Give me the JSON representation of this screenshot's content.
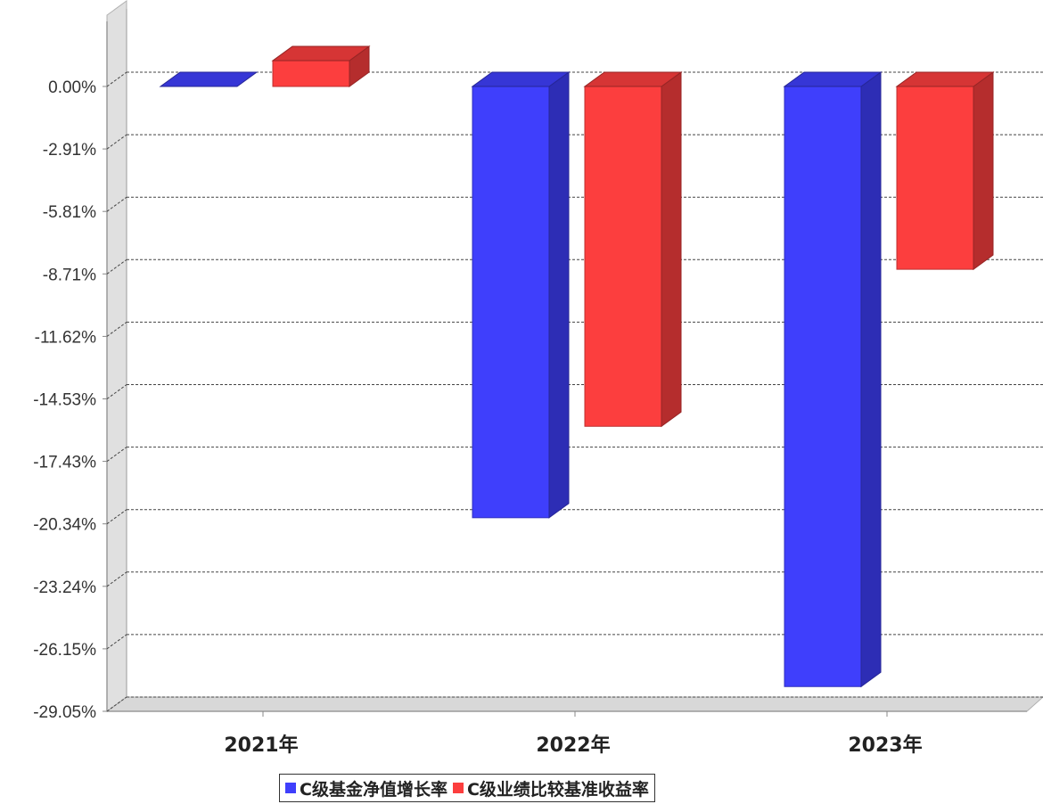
{
  "chart_data": {
    "type": "bar",
    "categories": [
      "2021年",
      "2022年",
      "2023年"
    ],
    "y_tick_labels": [
      "0.00%",
      "-2.91%",
      "-5.81%",
      "-8.71%",
      "-11.62%",
      "-14.53%",
      "-17.43%",
      "-20.34%",
      "-23.24%",
      "-26.15%",
      "-29.05%"
    ],
    "ylim": [
      -29.05,
      0
    ],
    "unit": "%",
    "grid": true,
    "legend_position": "bottom",
    "series": [
      {
        "name": "C级基金净值增长率",
        "color": "#3f3ffc",
        "values": [
          0.0,
          -20.05,
          -27.9
        ]
      },
      {
        "name": "C级业绩比较基准收益率",
        "color": "#fc3e3e",
        "values": [
          1.2,
          -15.8,
          -8.5
        ]
      }
    ]
  }
}
